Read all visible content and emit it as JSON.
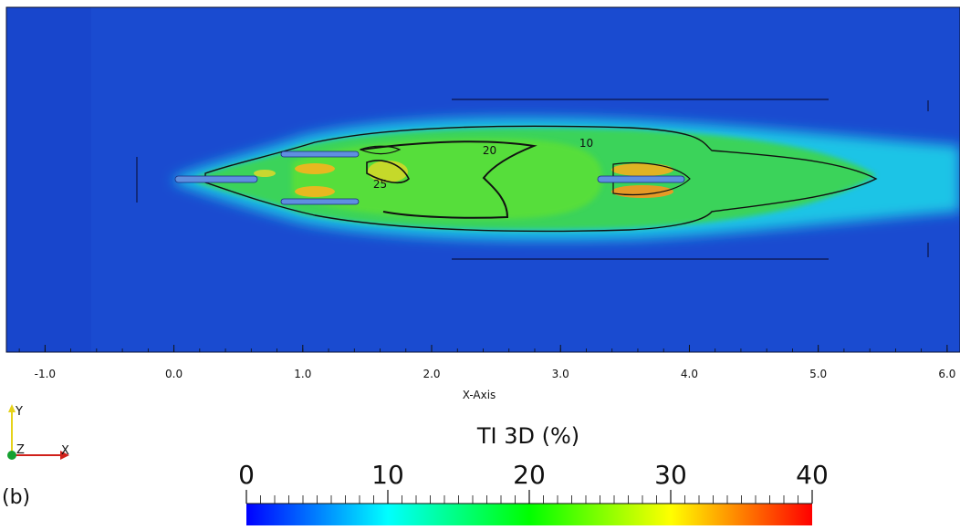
{
  "chart_data": {
    "type": "heatmap",
    "title": "",
    "panel_label": "(b)",
    "xlabel": "X-Axis",
    "xlim": [
      -1.3,
      6.1
    ],
    "x_ticks": [
      "-1.0",
      "0.0",
      "1.0",
      "2.0",
      "3.0",
      "4.0",
      "5.0",
      "6.0"
    ],
    "x_tick_values": [
      -1.0,
      0.0,
      1.0,
      2.0,
      3.0,
      4.0,
      5.0,
      6.0
    ],
    "contour_levels": [
      {
        "level": 10,
        "label": "10",
        "at": [
          3.2,
          0.35
        ]
      },
      {
        "level": 20,
        "label": "20",
        "at": [
          2.45,
          0.27
        ]
      },
      {
        "level": 25,
        "label": "25",
        "at": [
          1.6,
          -0.1
        ]
      }
    ],
    "colorbar": {
      "title": "TI 3D (%)",
      "min": 0,
      "max": 40,
      "labels": [
        "0",
        "10",
        "20",
        "30",
        "40"
      ],
      "label_values": [
        0,
        10,
        20,
        30,
        40
      ],
      "colors": [
        "#0000ff",
        "#00ffff",
        "#00ff00",
        "#ffff00",
        "#ff0000"
      ]
    },
    "orientation_axes": {
      "x": "X",
      "y": "Y",
      "z": "Z"
    },
    "background_level": 3,
    "wake_peak_level": 33
  }
}
